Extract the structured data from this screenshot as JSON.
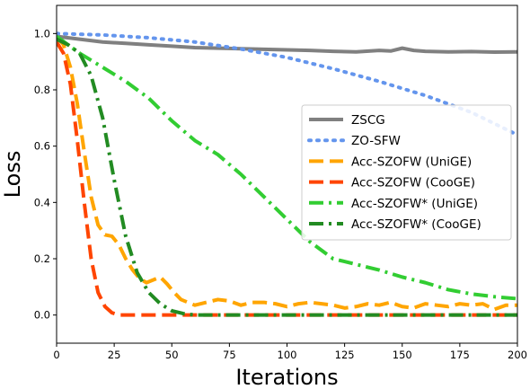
{
  "chart_data": {
    "type": "line",
    "title": "",
    "xlabel": "Iterations",
    "ylabel": "Loss",
    "xlim": [
      0,
      200
    ],
    "ylim": [
      -0.1,
      1.1
    ],
    "x_ticks": [
      0,
      25,
      50,
      75,
      100,
      125,
      150,
      175,
      200
    ],
    "y_ticks": [
      0.0,
      0.2,
      0.4,
      0.6,
      0.8,
      1.0
    ],
    "x_tick_labels": [
      "0",
      "25",
      "50",
      "75",
      "100",
      "125",
      "150",
      "175",
      "200"
    ],
    "y_tick_labels": [
      "0.0",
      "0.2",
      "0.4",
      "0.6",
      "0.8",
      "1.0"
    ],
    "grid": false,
    "legend_position": "center-right",
    "series": [
      {
        "name": "ZSCG",
        "color": "#808080",
        "dash": "solid",
        "x": [
          0,
          10,
          20,
          30,
          40,
          50,
          60,
          70,
          80,
          90,
          100,
          110,
          120,
          130,
          140,
          145,
          150,
          155,
          160,
          170,
          180,
          190,
          200
        ],
        "y": [
          0.99,
          0.98,
          0.97,
          0.965,
          0.96,
          0.955,
          0.95,
          0.948,
          0.946,
          0.944,
          0.942,
          0.94,
          0.937,
          0.935,
          0.94,
          0.938,
          0.948,
          0.94,
          0.937,
          0.935,
          0.936,
          0.934,
          0.935
        ]
      },
      {
        "name": "ZO-SFW",
        "color": "#6495ED",
        "dash": "dotted",
        "x": [
          0,
          20,
          40,
          60,
          80,
          100,
          120,
          140,
          160,
          180,
          200
        ],
        "y": [
          1.0,
          0.995,
          0.985,
          0.97,
          0.945,
          0.915,
          0.875,
          0.83,
          0.78,
          0.72,
          0.64
        ]
      },
      {
        "name": "Acc-SZOFW (UniGE)",
        "color": "#FFA500",
        "dash": "dashed",
        "x": [
          0,
          3,
          6,
          9,
          12,
          15,
          18,
          21,
          24,
          27,
          30,
          33,
          36,
          39,
          42,
          45,
          48,
          51,
          54,
          57,
          60,
          65,
          70,
          75,
          80,
          85,
          90,
          95,
          100,
          105,
          110,
          115,
          120,
          125,
          130,
          135,
          140,
          145,
          150,
          155,
          160,
          165,
          170,
          175,
          180,
          185,
          190,
          195,
          200
        ],
        "y": [
          0.99,
          0.96,
          0.88,
          0.75,
          0.58,
          0.42,
          0.32,
          0.285,
          0.28,
          0.25,
          0.2,
          0.16,
          0.13,
          0.115,
          0.125,
          0.135,
          0.11,
          0.08,
          0.055,
          0.045,
          0.035,
          0.045,
          0.055,
          0.05,
          0.035,
          0.045,
          0.045,
          0.04,
          0.03,
          0.04,
          0.045,
          0.04,
          0.035,
          0.025,
          0.03,
          0.04,
          0.035,
          0.045,
          0.03,
          0.025,
          0.04,
          0.035,
          0.03,
          0.04,
          0.035,
          0.04,
          0.02,
          0.035,
          0.035
        ]
      },
      {
        "name": "Acc-SZOFW (CooGE)",
        "color": "#FF4500",
        "dash": "dashed",
        "x": [
          0,
          3,
          6,
          9,
          12,
          15,
          18,
          21,
          24,
          27,
          30,
          35,
          40,
          50,
          60,
          80,
          100,
          120,
          140,
          160,
          180,
          200
        ],
        "y": [
          0.97,
          0.93,
          0.82,
          0.62,
          0.4,
          0.2,
          0.08,
          0.03,
          0.008,
          0.0,
          0.0,
          0.0,
          0.0,
          0.0,
          0.0,
          0.0,
          0.0,
          0.0,
          0.0,
          0.0,
          0.0,
          0.0
        ]
      },
      {
        "name": "Acc-SZOFW* (UniGE)",
        "color": "#32CD32",
        "dash": "dashdot",
        "x": [
          0,
          10,
          20,
          30,
          40,
          50,
          60,
          70,
          80,
          90,
          100,
          110,
          120,
          130,
          140,
          150,
          160,
          170,
          180,
          190,
          200
        ],
        "y": [
          0.99,
          0.93,
          0.88,
          0.83,
          0.77,
          0.69,
          0.62,
          0.57,
          0.5,
          0.42,
          0.34,
          0.26,
          0.2,
          0.18,
          0.16,
          0.135,
          0.115,
          0.09,
          0.075,
          0.065,
          0.058
        ]
      },
      {
        "name": "Acc-SZOFW* (CooGE)",
        "color": "#228B22",
        "dash": "dashdot",
        "x": [
          0,
          5,
          10,
          15,
          20,
          25,
          30,
          35,
          40,
          45,
          50,
          55,
          60,
          70,
          80,
          100,
          120,
          140,
          160,
          180,
          200
        ],
        "y": [
          0.98,
          0.96,
          0.93,
          0.85,
          0.7,
          0.48,
          0.28,
          0.15,
          0.08,
          0.04,
          0.015,
          0.005,
          0.0,
          0.0,
          0.0,
          0.0,
          0.0,
          0.0,
          0.0,
          0.0,
          0.0
        ]
      }
    ]
  }
}
